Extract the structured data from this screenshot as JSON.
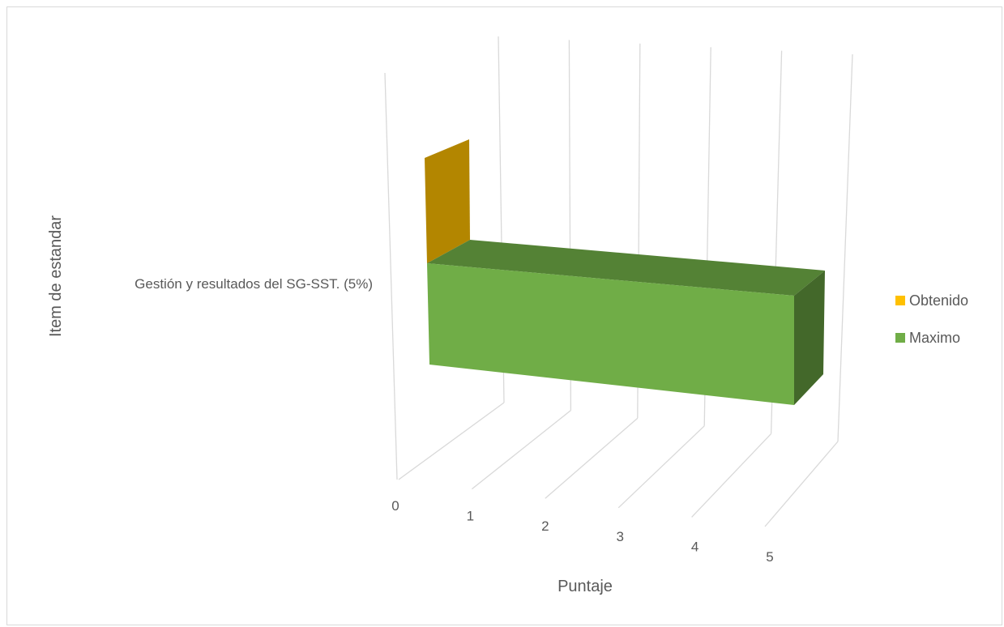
{
  "chart_data": {
    "type": "bar",
    "orientation": "horizontal",
    "style": "3d",
    "categories": [
      "Gestión y resultados del SG-SST. (5%)"
    ],
    "series": [
      {
        "name": "Obtenido",
        "values": [
          0
        ],
        "color": "#ffc000"
      },
      {
        "name": "Maximo",
        "values": [
          5
        ],
        "color": "#70ad47"
      }
    ],
    "xlabel": "Puntaje",
    "ylabel": "Item de estandar",
    "xlim": [
      0,
      5
    ],
    "x_ticks": [
      "0",
      "1",
      "2",
      "3",
      "4",
      "5"
    ],
    "grid": true,
    "legend_position": "right"
  }
}
